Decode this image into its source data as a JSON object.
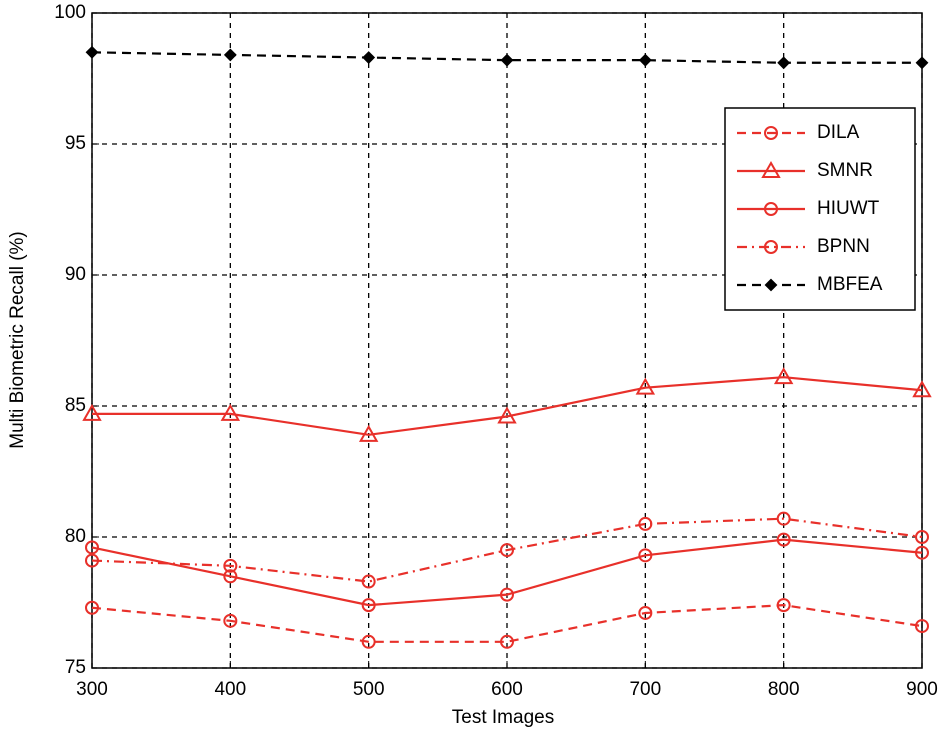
{
  "chart_data": {
    "type": "line",
    "xlabel": "Test Images",
    "ylabel": "Multi Biometric Recall (%)",
    "x": [
      300,
      400,
      500,
      600,
      700,
      800,
      900
    ],
    "xlim": [
      300,
      900
    ],
    "xticks": [
      300,
      400,
      500,
      600,
      700,
      800,
      900
    ],
    "ylim": [
      75,
      100
    ],
    "yticks": [
      75,
      80,
      85,
      90,
      95,
      100
    ],
    "grid": true,
    "legend": "upper right",
    "series": [
      {
        "name": "DILA",
        "color": "#e8302a",
        "linestyle": "dashed",
        "marker": "circle",
        "values": [
          77.3,
          76.8,
          76.0,
          76.0,
          77.1,
          77.4,
          76.6
        ]
      },
      {
        "name": "SMNR",
        "color": "#e8302a",
        "linestyle": "solid",
        "marker": "triangle",
        "values": [
          84.7,
          84.7,
          83.9,
          84.6,
          85.7,
          86.1,
          85.6
        ]
      },
      {
        "name": "HIUWT",
        "color": "#e8302a",
        "linestyle": "solid",
        "marker": "circle",
        "values": [
          79.6,
          78.5,
          77.4,
          77.8,
          79.3,
          79.9,
          79.4
        ]
      },
      {
        "name": "BPNN",
        "color": "#e8302a",
        "linestyle": "dashdot",
        "marker": "circle",
        "values": [
          79.1,
          78.9,
          78.3,
          79.5,
          80.5,
          80.7,
          80.0
        ]
      },
      {
        "name": "MBFEA",
        "color": "#000000",
        "linestyle": "dashed",
        "marker": "diamond",
        "values": [
          98.5,
          98.4,
          98.3,
          98.2,
          98.2,
          98.1,
          98.1
        ]
      }
    ]
  }
}
